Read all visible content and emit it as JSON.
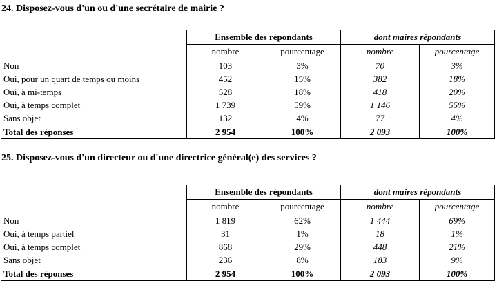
{
  "document": {
    "background": "#ffffff",
    "text_color": "#000000"
  },
  "tables": [
    {
      "title": "24. Disposez-vous d'un ou d'une secrétaire de mairie ?",
      "group_headers": [
        "Ensemble des répondants",
        "dont maires répondants"
      ],
      "col_headers": [
        "nombre",
        "pourcentage",
        "nombre",
        "pourcentage"
      ],
      "rows": [
        {
          "label": "Non",
          "values": [
            "103",
            "3%",
            "70",
            "3%"
          ]
        },
        {
          "label": "Oui, pour un quart de temps ou moins",
          "values": [
            "452",
            "15%",
            "382",
            "18%"
          ]
        },
        {
          "label": "Oui, à mi-temps",
          "values": [
            "528",
            "18%",
            "418",
            "20%"
          ]
        },
        {
          "label": "Oui, à temps complet",
          "values": [
            "1 739",
            "59%",
            "1 146",
            "55%"
          ]
        },
        {
          "label": "Sans objet",
          "values": [
            "132",
            "4%",
            "77",
            "4%"
          ]
        }
      ],
      "total": {
        "label": "Total des réponses",
        "values": [
          "2 954",
          "100%",
          "2 093",
          "100%"
        ]
      }
    },
    {
      "title": "25. Disposez-vous d'un directeur ou d'une directrice général(e) des services ?",
      "group_headers": [
        "Ensemble des répondants",
        "dont maires répondants"
      ],
      "col_headers": [
        "nombre",
        "pourcentage",
        "nombre",
        "pourcentage"
      ],
      "rows": [
        {
          "label": "Non",
          "values": [
            "1 819",
            "62%",
            "1 444",
            "69%"
          ]
        },
        {
          "label": "Oui, à temps partiel",
          "values": [
            "31",
            "1%",
            "18",
            "1%"
          ]
        },
        {
          "label": "Oui, à temps complet",
          "values": [
            "868",
            "29%",
            "448",
            "21%"
          ]
        },
        {
          "label": "Sans objet",
          "values": [
            "236",
            "8%",
            "183",
            "9%"
          ]
        }
      ],
      "total": {
        "label": "Total des réponses",
        "values": [
          "2 954",
          "100%",
          "2 093",
          "100%"
        ]
      }
    }
  ]
}
